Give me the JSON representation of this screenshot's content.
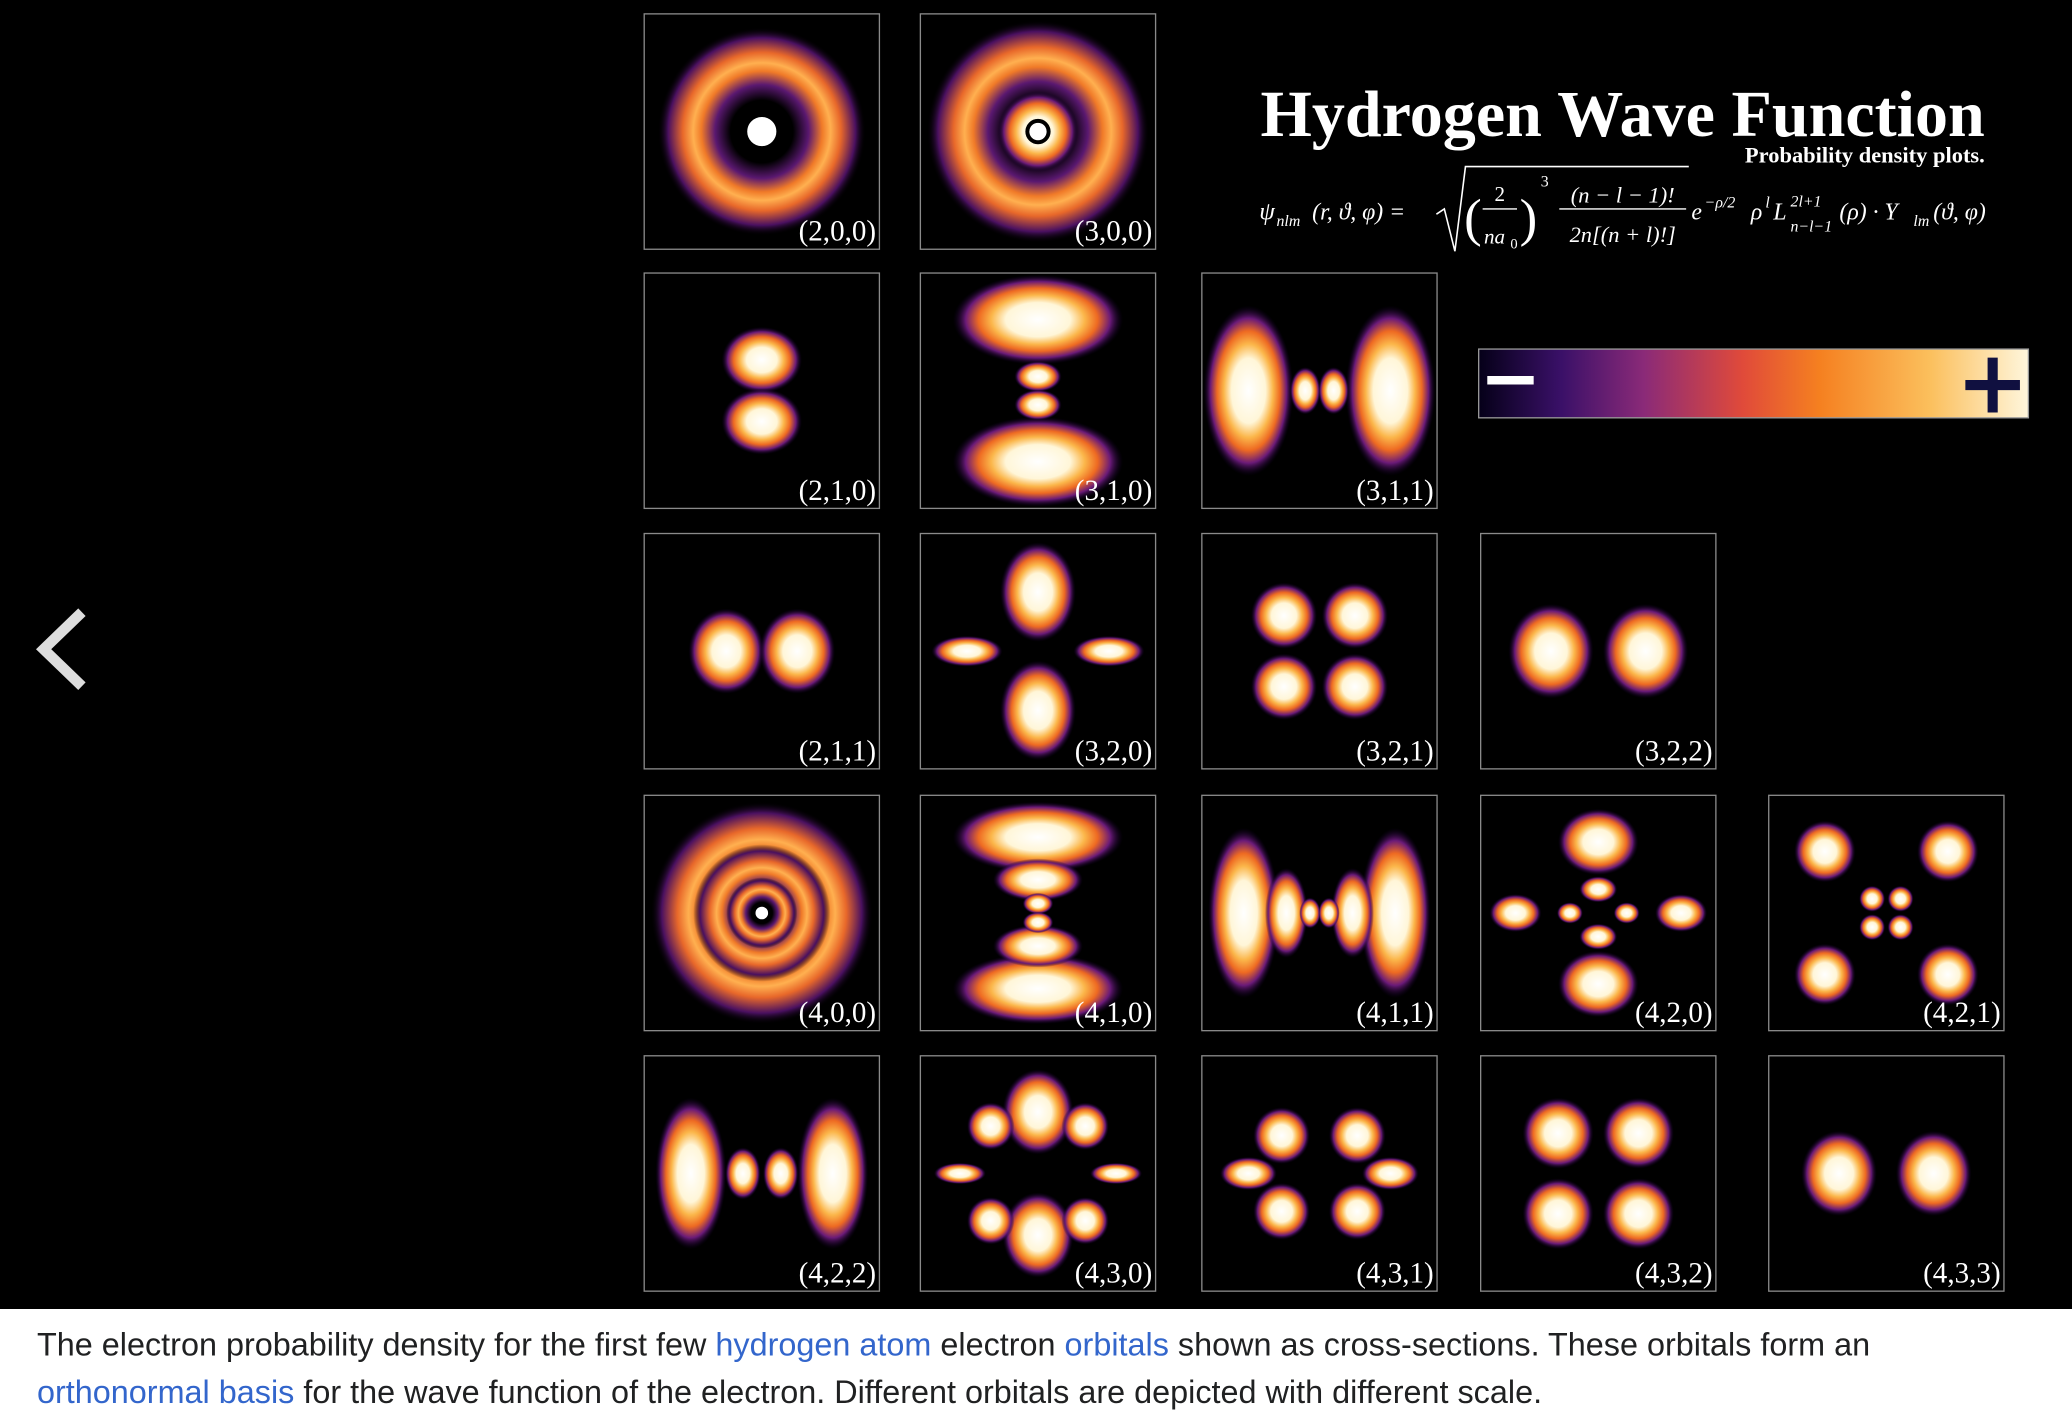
{
  "header": {
    "title": "Hydrogen Wave Function",
    "subtitle": "Probability density plots."
  },
  "formula": {
    "psi": "ψ",
    "psi_sub": "nlm",
    "args": "(r, ϑ, φ) =",
    "open": "(",
    "num1": "2",
    "den1": "na",
    "den1_sub": "0",
    "close": ")",
    "pow": "3",
    "num2": "(n − l − 1)!",
    "den2": "2n[(n + l)!]",
    "e": "e",
    "e_sup": "−ρ/2",
    "rho": "ρ",
    "rho_sup": "l",
    "L": "L",
    "L_sup": "2l+1",
    "L_sub": "n−l−1",
    "tail": "(ρ) · Y",
    "Y_sub": "lm",
    "Y_args": "(ϑ, φ)"
  },
  "legend": {
    "minus": "−",
    "plus": "+"
  },
  "orbitals": [
    "(2,0,0)",
    "(3,0,0)",
    "(2,1,0)",
    "(3,1,0)",
    "(3,1,1)",
    "(2,1,1)",
    "(3,2,0)",
    "(3,2,1)",
    "(3,2,2)",
    "(4,0,0)",
    "(4,1,0)",
    "(4,1,1)",
    "(4,2,0)",
    "(4,2,1)",
    "(4,2,2)",
    "(4,3,0)",
    "(4,3,1)",
    "(4,3,2)",
    "(4,3,3)"
  ],
  "caption": {
    "parts": [
      {
        "text": "The electron probability density for the first few "
      },
      {
        "link": "hydrogen atom"
      },
      {
        "text": " electron "
      },
      {
        "link": "orbitals"
      },
      {
        "text": " shown as cross-sections. These orbitals form an "
      },
      {
        "link": "orthonormal basis"
      },
      {
        "text": " for the wave function of the electron. Different orbitals are depicted with different scale."
      }
    ]
  }
}
